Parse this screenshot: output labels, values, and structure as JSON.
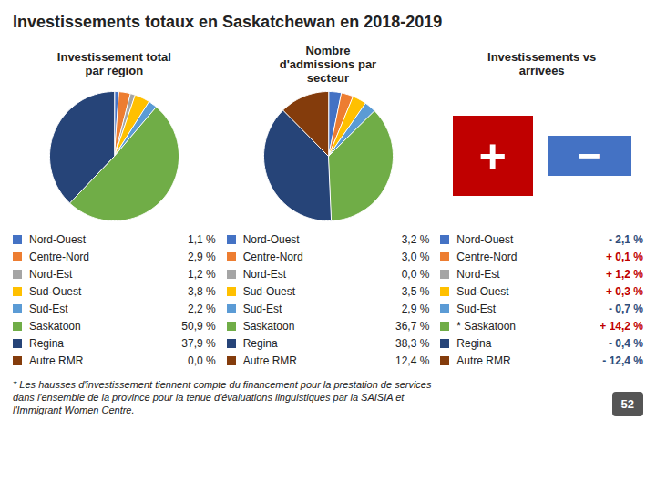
{
  "title": "Investissements totaux en Saskatchewan en 2018-2019",
  "footnotes": [
    "* Les hausses d'investissement tiennent compte du financement pour la prestation de services",
    "dans l'ensemble de la province pour la tenue d'évaluations linguistiques par la SAISIA et",
    "l'Immigrant Women Centre."
  ],
  "page_number": "52",
  "chart_data": [
    {
      "type": "pie",
      "title": "Investissement total\npar région",
      "categories": [
        "Nord-Ouest",
        "Centre-Nord",
        "Nord-Est",
        "Sud-Ouest",
        "Sud-Est",
        "Saskatoon",
        "Regina",
        "Autre RMR"
      ],
      "values": [
        1.1,
        2.9,
        1.2,
        3.8,
        2.2,
        50.9,
        37.9,
        0.0
      ],
      "value_labels": [
        "1,1 %",
        "2,9 %",
        "1,2 %",
        "3,8 %",
        "2,2 %",
        "50,9 %",
        "37,9 %",
        "0,0 %"
      ],
      "colors": [
        "#4472c4",
        "#ed7d31",
        "#a5a5a5",
        "#ffc000",
        "#5b9bd5",
        "#70ad47",
        "#264478",
        "#843c0c"
      ],
      "data_labels": true
    },
    {
      "type": "pie",
      "title": "Nombre\nd'admissions par\nsecteur",
      "categories": [
        "Nord-Ouest",
        "Centre-Nord",
        "Nord-Est",
        "Sud-Ouest",
        "Sud-Est",
        "Saskatoon",
        "Regina",
        "Autre RMR"
      ],
      "values": [
        3.2,
        3.0,
        0.0,
        3.5,
        2.9,
        36.7,
        38.3,
        12.4
      ],
      "value_labels": [
        "3,2 %",
        "3,0 %",
        "0,0 %",
        "3,5 %",
        "2,9 %",
        "36,7 %",
        "38,3 %",
        "12,4 %"
      ],
      "colors": [
        "#4472c4",
        "#ed7d31",
        "#a5a5a5",
        "#ffc000",
        "#5b9bd5",
        "#70ad47",
        "#264478",
        "#843c0c"
      ],
      "data_labels": true
    },
    {
      "type": "table",
      "title": "Investissements vs\narrivées",
      "categories": [
        "Nord-Ouest",
        "Centre-Nord",
        "Nord-Est",
        "Sud-Ouest",
        "Sud-Est",
        "* Saskatoon",
        "Regina",
        "Autre RMR"
      ],
      "values": [
        -2.1,
        0.1,
        1.2,
        0.3,
        -0.7,
        14.2,
        -0.4,
        -12.4
      ],
      "value_labels": [
        "- 2,1 %",
        "+ 0,1 %",
        "+ 1,2 %",
        "+ 0,3 %",
        "- 0,7 %",
        "+ 14,2 %",
        "- 0,4 %",
        "- 12,4 %"
      ],
      "colors": [
        "#2e4d7b",
        "#c00000",
        "#c00000",
        "#c00000",
        "#2e4d7b",
        "#c00000",
        "#2e4d7b",
        "#2e4d7b"
      ],
      "data_labels": true,
      "annotations": [
        {
          "text": "+",
          "color": "#c00000"
        },
        {
          "text": "−",
          "color": "#4472c4"
        }
      ]
    }
  ]
}
